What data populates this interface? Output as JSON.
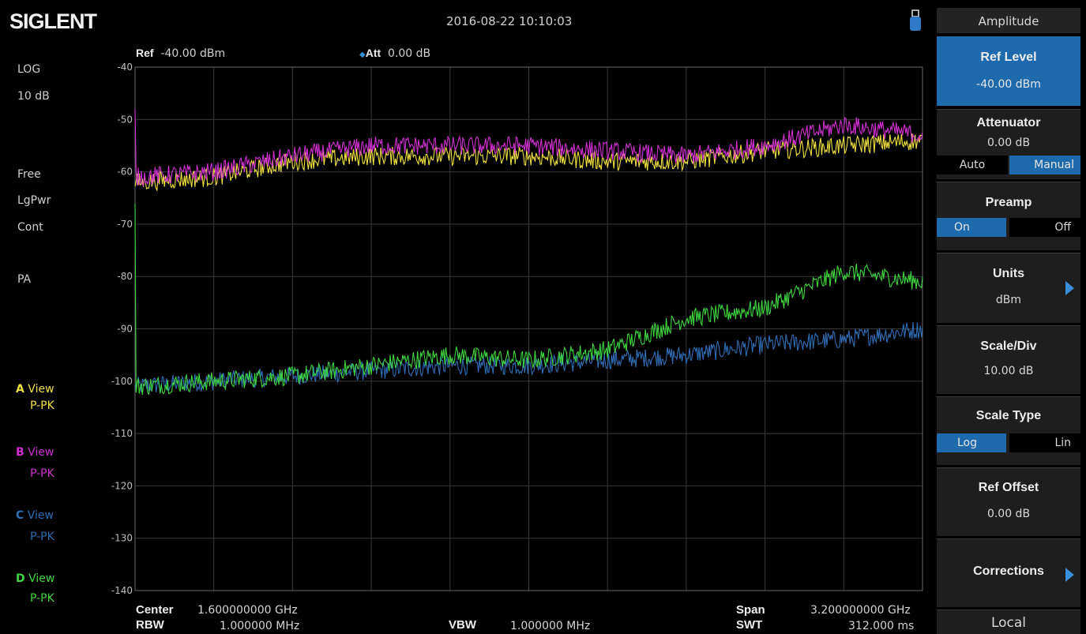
{
  "header": {
    "brand": "SIGLENT",
    "datetime": "2016-08-22  10:10:03"
  },
  "left_status": {
    "scale_mode": "LOG",
    "scale_div": "10 dB",
    "trig": "Free",
    "avg": "LgPwr",
    "sweep": "Cont",
    "preamp": "PA"
  },
  "traces": [
    {
      "letter": "A",
      "mode": "View",
      "detector": "P-PK",
      "color": "#f0e040"
    },
    {
      "letter": "B",
      "mode": "View",
      "detector": "P-PK",
      "color": "#d030d0"
    },
    {
      "letter": "C",
      "mode": "View",
      "detector": "P-PK",
      "color": "#2f6db5"
    },
    {
      "letter": "D",
      "mode": "View",
      "detector": "P-PK",
      "color": "#3fd63f"
    }
  ],
  "plot_header": {
    "ref_label": "Ref",
    "ref_value": "-40.00 dBm",
    "att_label": "Att",
    "att_value": "0.00 dB"
  },
  "bottom": {
    "center_label": "Center",
    "center_value": "1.600000000 GHz",
    "rbw_label": "RBW",
    "rbw_value": "1.000000 MHz",
    "vbw_label": "VBW",
    "vbw_value": "1.000000 MHz",
    "span_label": "Span",
    "span_value": "3.200000000 GHz",
    "swt_label": "SWT",
    "swt_value": "312.000 ms"
  },
  "panel": {
    "title": "Amplitude",
    "ref_level": {
      "label": "Ref Level",
      "value": "-40.00 dBm"
    },
    "attenuator": {
      "label": "Attenuator",
      "value": "0.00 dB",
      "opt1": "Auto",
      "opt2": "Manual",
      "selected": "Manual"
    },
    "preamp": {
      "label": "Preamp",
      "opt1": "On",
      "opt2": "Off",
      "selected": "On"
    },
    "units": {
      "label": "Units",
      "value": "dBm"
    },
    "scale_div": {
      "label": "Scale/Div",
      "value": "10.00 dB"
    },
    "scale_type": {
      "label": "Scale Type",
      "opt1": "Log",
      "opt2": "Lin",
      "selected": "Log"
    },
    "ref_offset": {
      "label": "Ref Offset",
      "value": "0.00 dB"
    },
    "corrections": {
      "label": "Corrections"
    },
    "local": "Local"
  },
  "chart_data": {
    "type": "line",
    "ylim": [
      -140,
      -40
    ],
    "yticks": [
      "-40",
      "-50",
      "-60",
      "-70",
      "-80",
      "-90",
      "-100",
      "-110",
      "-120",
      "-130",
      "-140"
    ],
    "x_unit": "GHz",
    "xlim": [
      0,
      3.2
    ],
    "grid": true,
    "series": [
      {
        "name": "A",
        "color": "#f0e040",
        "x": [
          0,
          0.32,
          0.64,
          0.96,
          1.28,
          1.6,
          1.92,
          2.24,
          2.56,
          2.88,
          3.2
        ],
        "y": [
          -62,
          -61,
          -58,
          -57,
          -57,
          -57,
          -58,
          -58,
          -56,
          -55,
          -54
        ]
      },
      {
        "name": "B",
        "color": "#d030d0",
        "x": [
          0,
          0.32,
          0.64,
          0.96,
          1.28,
          1.6,
          1.92,
          2.24,
          2.56,
          2.88,
          3.2
        ],
        "y": [
          -61,
          -60,
          -57,
          -55,
          -55,
          -55,
          -56,
          -57,
          -55,
          -51,
          -53
        ]
      },
      {
        "name": "C",
        "color": "#2f6db5",
        "x": [
          0,
          0.32,
          0.64,
          0.96,
          1.28,
          1.6,
          1.92,
          2.24,
          2.56,
          2.88,
          3.2
        ],
        "y": [
          -101,
          -100,
          -99,
          -98,
          -97,
          -97,
          -96,
          -95,
          -93,
          -92,
          -90
        ]
      },
      {
        "name": "D",
        "color": "#3fd63f",
        "x": [
          0,
          0.32,
          0.64,
          0.96,
          1.28,
          1.6,
          1.92,
          2.24,
          2.56,
          2.88,
          3.2
        ],
        "y": [
          -101,
          -100,
          -99,
          -97,
          -95,
          -96,
          -94,
          -88,
          -86,
          -79,
          -81
        ]
      }
    ]
  }
}
